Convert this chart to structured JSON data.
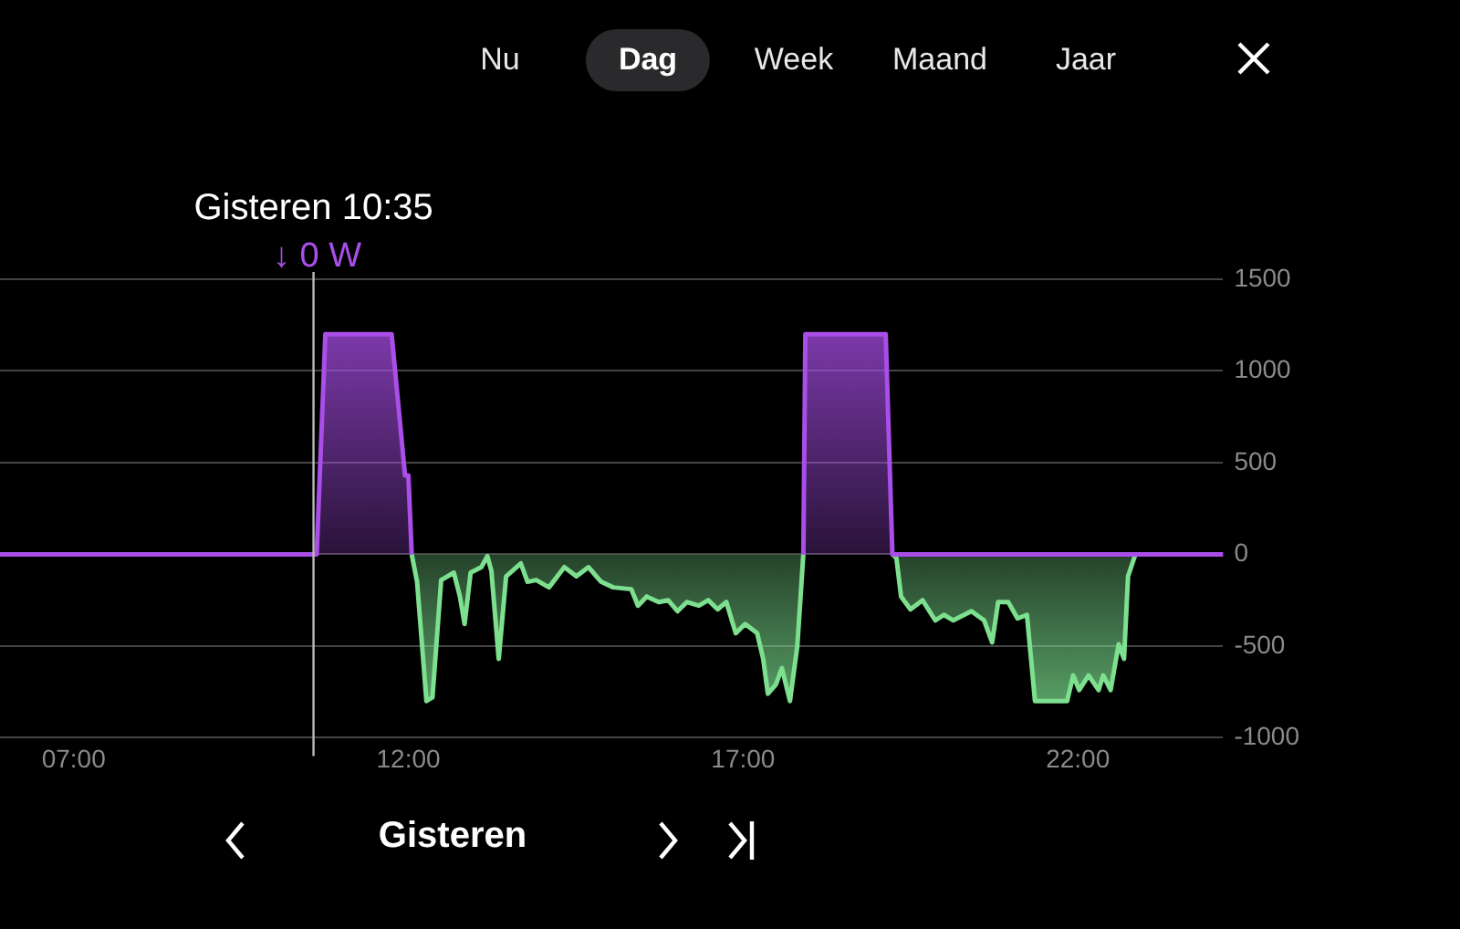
{
  "chart_data": {
    "type": "area",
    "series": [
      {
        "color": "#a94ee8",
        "x": [
          5.9,
          10.63,
          10.76,
          11.75,
          11.95,
          12.0,
          12.05,
          12.06,
          17.89,
          17.9,
          17.93,
          19.13,
          19.23,
          22.86,
          24.17
        ],
        "values": [
          0,
          0,
          1200,
          1200,
          430,
          430,
          0,
          null,
          null,
          0,
          1200,
          1200,
          0,
          0,
          0
        ]
      },
      {
        "color": "#7de08f",
        "x": [
          12.05,
          12.13,
          12.27,
          12.36,
          12.49,
          12.68,
          12.77,
          12.84,
          12.93,
          13.09,
          13.18,
          13.24,
          13.35,
          13.46,
          13.68,
          13.78,
          13.91,
          14.1,
          14.33,
          14.51,
          14.69,
          14.88,
          15.06,
          15.33,
          15.43,
          15.56,
          15.74,
          15.88,
          16.02,
          16.16,
          16.34,
          16.48,
          16.62,
          16.75,
          16.89,
          17.03,
          17.21,
          17.3,
          17.37,
          17.49,
          17.58,
          17.7,
          17.81,
          17.9,
          17.91,
          19.22,
          19.23,
          19.29,
          19.36,
          19.5,
          19.68,
          19.87,
          20.0,
          20.14,
          20.41,
          20.6,
          20.72,
          20.81,
          20.96,
          21.1,
          21.24,
          21.36,
          21.84,
          21.93,
          22.02,
          22.16,
          22.31,
          22.38,
          22.49,
          22.61,
          22.69,
          22.75,
          22.86
        ],
        "values": [
          0,
          -150,
          -800,
          -780,
          -140,
          -100,
          -230,
          -380,
          -100,
          -70,
          -10,
          -90,
          -570,
          -120,
          -50,
          -150,
          -140,
          -180,
          -70,
          -120,
          -70,
          -150,
          -180,
          -190,
          -280,
          -230,
          -260,
          -250,
          -310,
          -260,
          -280,
          -250,
          -300,
          -260,
          -430,
          -380,
          -430,
          -570,
          -760,
          -710,
          -620,
          -800,
          -500,
          0,
          null,
          null,
          0,
          -20,
          -230,
          -300,
          -250,
          -360,
          -330,
          -360,
          -310,
          -360,
          -480,
          -260,
          -260,
          -350,
          -330,
          -800,
          -800,
          -660,
          -740,
          -660,
          -740,
          -660,
          -740,
          -490,
          -570,
          -120,
          0
        ]
      }
    ],
    "xlim": [
      5.9,
      24.17
    ],
    "xticks": [
      {
        "value": 7,
        "label": "07:00"
      },
      {
        "value": 12,
        "label": "12:00"
      },
      {
        "value": 17,
        "label": "17:00"
      },
      {
        "value": 22,
        "label": "22:00"
      }
    ],
    "ylim": [
      -1000,
      1500
    ],
    "yticks": [
      -1000,
      -500,
      0,
      500,
      1000,
      1500
    ],
    "grid": "y",
    "legend": false,
    "ref_lines": [
      {
        "axis": "x",
        "value": 10.583,
        "color": "#bbbbbb"
      }
    ],
    "annotations": [
      "Nu",
      "Dag",
      "Week",
      "Maand",
      "Jaar",
      "Gisteren",
      "Gisteren 10:35",
      "↓ 0 W"
    ]
  }
}
